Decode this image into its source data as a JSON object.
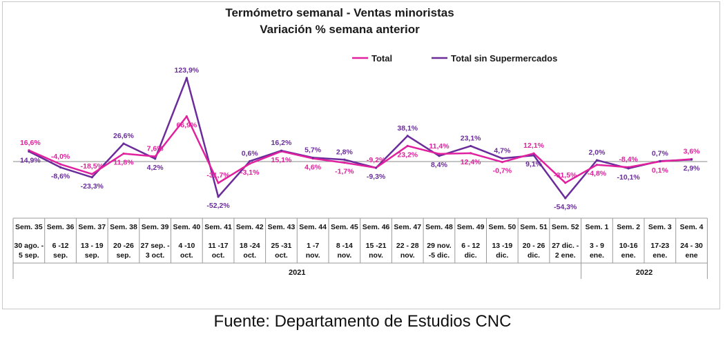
{
  "source": "Fuente: Departamento de Estudios CNC",
  "chart_data": {
    "type": "line",
    "title": "Termómetro semanal - Ventas minoristas",
    "subtitle": "Variación % semana anterior",
    "legend_position": "top-right",
    "colors": {
      "Total": "#e0209e",
      "Total sin Supermercados": "#6a2c9a"
    },
    "categories": [
      {
        "week": "Sem. 35",
        "dates": [
          "30 ago. -",
          "5 sep."
        ]
      },
      {
        "week": "Sem. 36",
        "dates": [
          "6 -12",
          "sep."
        ]
      },
      {
        "week": "Sem. 37",
        "dates": [
          "13 - 19",
          "sep."
        ]
      },
      {
        "week": "Sem. 38",
        "dates": [
          "20 -26",
          "sep."
        ]
      },
      {
        "week": "Sem. 39",
        "dates": [
          "27 sep. -",
          "3 oct."
        ]
      },
      {
        "week": "Sem. 40",
        "dates": [
          "4 -10",
          "oct."
        ]
      },
      {
        "week": "Sem. 41",
        "dates": [
          "11 -17",
          "oct."
        ]
      },
      {
        "week": "Sem. 42",
        "dates": [
          "18 -24",
          "oct."
        ]
      },
      {
        "week": "Sem. 43",
        "dates": [
          "25 -31",
          "oct."
        ]
      },
      {
        "week": "Sem. 44",
        "dates": [
          "1 -7",
          "nov."
        ]
      },
      {
        "week": "Sem. 45",
        "dates": [
          "8 -14",
          "nov."
        ]
      },
      {
        "week": "Sem. 46",
        "dates": [
          "15 -21",
          "nov."
        ]
      },
      {
        "week": "Sem. 47",
        "dates": [
          "22 - 28",
          "nov."
        ]
      },
      {
        "week": "Sem. 48",
        "dates": [
          "29 nov.",
          "-5 dic."
        ]
      },
      {
        "week": "Sem. 49",
        "dates": [
          "6 - 12",
          "dic."
        ]
      },
      {
        "week": "Sem. 50",
        "dates": [
          "13 -19",
          "dic."
        ]
      },
      {
        "week": "Sem. 51",
        "dates": [
          "20 - 26",
          "dic."
        ]
      },
      {
        "week": "Sem. 52",
        "dates": [
          "27 dic. -",
          "2 ene."
        ]
      },
      {
        "week": "Sem. 1",
        "dates": [
          "3 - 9",
          "ene."
        ]
      },
      {
        "week": "Sem. 2",
        "dates": [
          "10-16",
          "ene."
        ]
      },
      {
        "week": "Sem. 3",
        "dates": [
          "17-23",
          "ene."
        ]
      },
      {
        "week": "Sem. 4",
        "dates": [
          "24 - 30",
          "ene"
        ]
      }
    ],
    "year_groups": [
      {
        "label": "2021",
        "count": 18
      },
      {
        "label": "2022",
        "count": 4
      }
    ],
    "series": [
      {
        "name": "Total",
        "values": [
          16.6,
          -4.0,
          -18.5,
          11.8,
          7.6,
          66.9,
          -31.7,
          -3.1,
          15.1,
          4.6,
          -1.7,
          -9.2,
          23.2,
          11.4,
          12.4,
          -0.7,
          12.1,
          -31.5,
          -4.8,
          -8.4,
          0.1,
          3.6
        ],
        "labels": [
          "16,6%",
          "-4,0%",
          "-18,5%",
          "11,8%",
          "7,6%",
          "66,9%",
          "-31,7%",
          "-3,1%",
          "15,1%",
          "4,6%",
          "-1,7%",
          "-9,2%",
          "23,2%",
          "11,4%",
          "12,4%",
          "-0,7%",
          "12,1%",
          "-31,5%",
          "-4,8%",
          "-8,4%",
          "0,1%",
          "3,6%"
        ]
      },
      {
        "name": "Total sin Supermercados",
        "values": [
          14.9,
          -8.6,
          -23.3,
          26.6,
          4.2,
          123.9,
          -52.2,
          0.6,
          16.2,
          5.7,
          2.8,
          -9.3,
          38.1,
          8.4,
          23.1,
          4.7,
          9.1,
          -54.3,
          2.0,
          -10.1,
          0.7,
          2.9
        ],
        "labels": [
          "14,9%",
          "-8,6%",
          "-23,3%",
          "26,6%",
          "4,2%",
          "123,9%",
          "-52,2%",
          "0,6%",
          "16,2%",
          "5,7%",
          "2,8%",
          "-9,3%",
          "38,1%",
          "8,4%",
          "23,1%",
          "4,7%",
          "9,1%",
          "-54,3%",
          "2,0%",
          "-10,1%",
          "0,7%",
          "2,9%"
        ]
      }
    ]
  }
}
